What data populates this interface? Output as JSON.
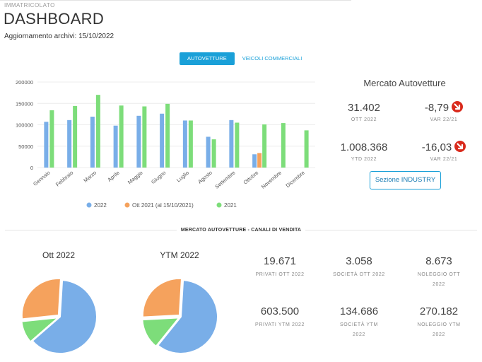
{
  "header": {
    "section_label": "IMMATRICOLATO",
    "title": "DASHBOARD",
    "update_label": "Aggiornamento archivi:",
    "update_date": "15/10/2022"
  },
  "tabs": [
    {
      "label": "AUTOVETTURE",
      "active": true
    },
    {
      "label": "VEICOLI COMMERCIALI",
      "active": false
    }
  ],
  "chart_data": {
    "type": "bar",
    "categories": [
      "Gennaio",
      "Febbraio",
      "Marzo",
      "Aprile",
      "Maggio",
      "Giugno",
      "Luglio",
      "Agosto",
      "Settembre",
      "Ottobre",
      "Novembre",
      "Dicembre"
    ],
    "series": [
      {
        "name": "2022",
        "color": "#79aee8",
        "values": [
          107000,
          111000,
          119000,
          98000,
          121000,
          126000,
          110000,
          72000,
          111000,
          31000,
          null,
          null
        ]
      },
      {
        "name": "Ott 2021 (al 15/10/2021)",
        "color": "#f5a25d",
        "values": [
          null,
          null,
          null,
          null,
          null,
          null,
          null,
          null,
          null,
          34000,
          null,
          null
        ]
      },
      {
        "name": "2021",
        "color": "#7ddd7a",
        "values": [
          134000,
          144000,
          170000,
          145000,
          143000,
          149000,
          110000,
          66000,
          105000,
          101000,
          104000,
          87000
        ]
      }
    ],
    "yticks": [
      "0",
      "50000",
      "100000",
      "150000",
      "200000"
    ],
    "ylim": [
      0,
      200000
    ],
    "grid": true,
    "legend": "bottom"
  },
  "market": {
    "title": "Mercato Autovetture",
    "kpis": [
      {
        "value": "31.402",
        "label": "OTT 2022",
        "var_value": "-8,79",
        "var_label": "VAR 22/21"
      },
      {
        "value": "1.008.368",
        "label": "YTD 2022",
        "var_value": "-16,03",
        "var_label": "VAR 22/21"
      }
    ],
    "button_label": "Sezione INDUSTRY"
  },
  "channels": {
    "title": "MERCATO AUTOVETTURE - CANALI DI VENDITA",
    "pies": [
      {
        "title": "Ott 2022",
        "slices": [
          {
            "value": 19671,
            "color": "#79aee8"
          },
          {
            "value": 3058,
            "color": "#7ddd7a"
          },
          {
            "value": 8673,
            "color": "#f5a25d"
          }
        ]
      },
      {
        "title": "YTM 2022",
        "slices": [
          {
            "value": 603500,
            "color": "#79aee8"
          },
          {
            "value": 134686,
            "color": "#7ddd7a"
          },
          {
            "value": 270182,
            "color": "#f5a25d"
          }
        ]
      }
    ],
    "stats": [
      [
        {
          "value": "19.671",
          "label_lines": [
            "PRIVATI OTT 2022"
          ]
        },
        {
          "value": "3.058",
          "label_lines": [
            "SOCIETÀ OTT 2022"
          ]
        },
        {
          "value": "8.673",
          "label_lines": [
            "NOLEGGIO OTT",
            "2022"
          ]
        }
      ],
      [
        {
          "value": "603.500",
          "label_lines": [
            "PRIVATI YTM 2022"
          ]
        },
        {
          "value": "134.686",
          "label_lines": [
            "SOCIETÀ YTM",
            "2022"
          ]
        },
        {
          "value": "270.182",
          "label_lines": [
            "NOLEGGIO YTM",
            "2022"
          ]
        }
      ]
    ]
  }
}
